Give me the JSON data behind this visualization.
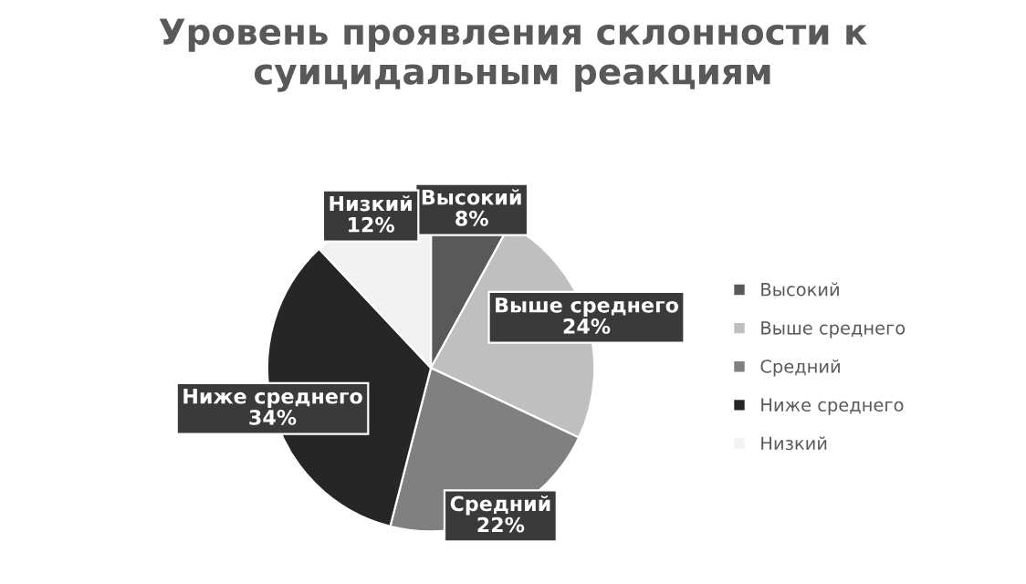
{
  "chart_data": {
    "type": "pie",
    "title": "Уровень проявления склонности к суицидальным реакциям",
    "categories": [
      "Высокий",
      "Выше среднего",
      "Средний",
      "Ниже среднего",
      "Низкий"
    ],
    "values": [
      8,
      24,
      22,
      34,
      12
    ],
    "colors": [
      "#595959",
      "#bfbfbf",
      "#808080",
      "#262626",
      "#f2f2f2"
    ],
    "value_labels": [
      "Высокий\n8%",
      "Выше среднего\n24%",
      "Средний\n22%",
      "Ниже среднего\n34%",
      "Низкий\n12%"
    ],
    "legend": "right"
  }
}
